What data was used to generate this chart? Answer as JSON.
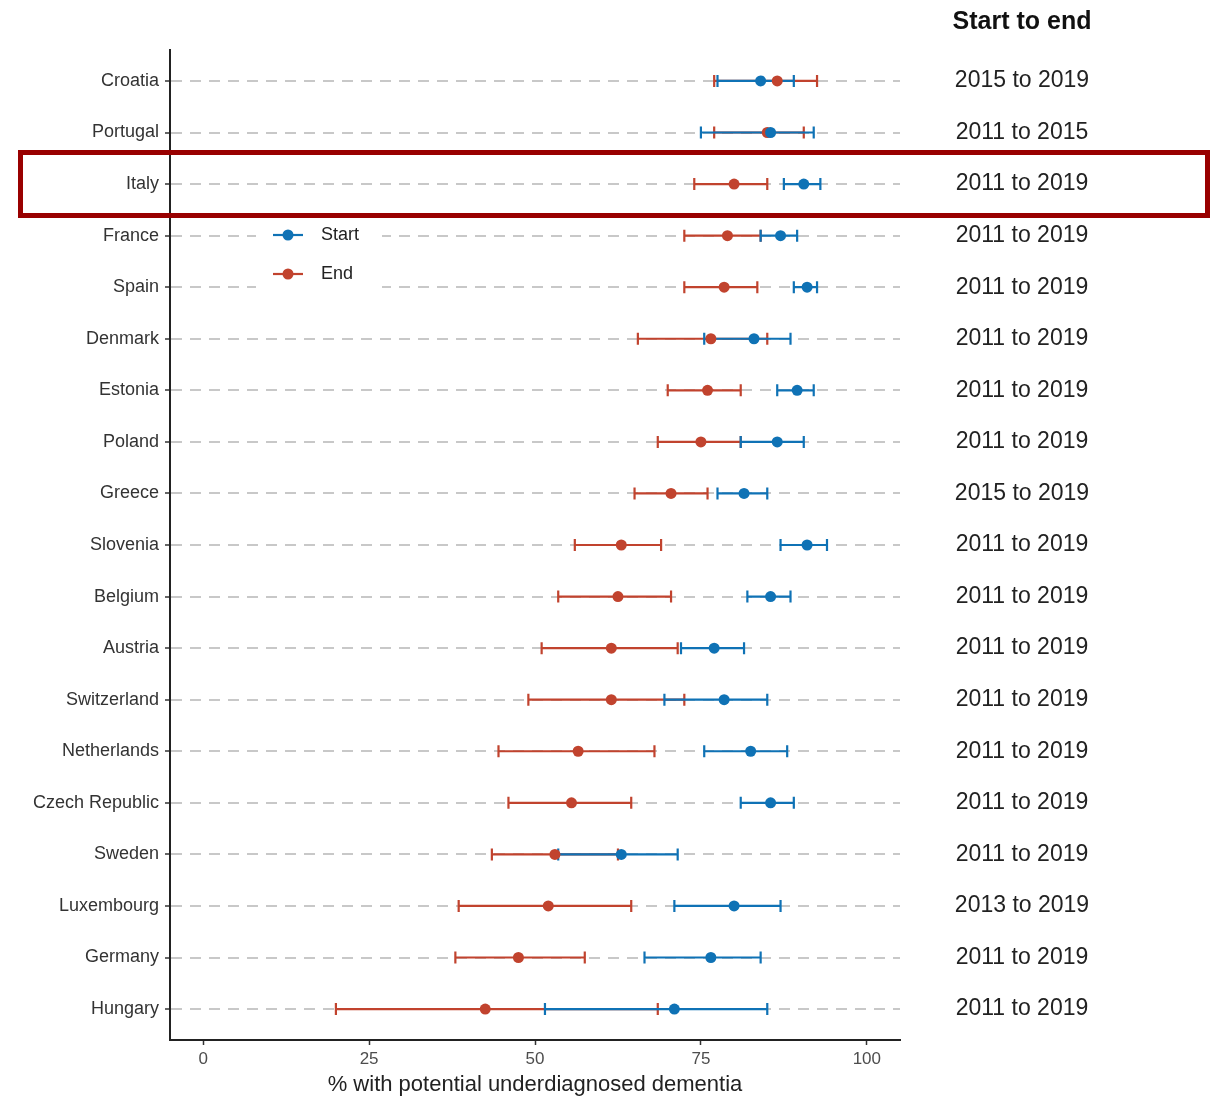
{
  "chart_data": {
    "type": "scatter",
    "orientation": "horizontal",
    "xlabel": "% with potential underdiagnosed dementia",
    "categories": [
      "Croatia",
      "Portugal",
      "Italy",
      "France",
      "Spain",
      "Denmark",
      "Estonia",
      "Poland",
      "Greece",
      "Slovenia",
      "Belgium",
      "Austria",
      "Switzerland",
      "Netherlands",
      "Czech Republic",
      "Sweden",
      "Luxembourg",
      "Germany",
      "Hungary"
    ],
    "series": [
      {
        "name": "Start",
        "color": "#0f72b5",
        "values": [
          84,
          85.5,
          90.5,
          87,
          91,
          83,
          89.5,
          86.5,
          81.5,
          91,
          85.5,
          77,
          78.5,
          82.5,
          85.5,
          63,
          80,
          76.5,
          71
        ],
        "errors": [
          [
            77.5,
            89
          ],
          [
            75,
            92
          ],
          [
            87.5,
            93
          ],
          [
            84,
            89.5
          ],
          [
            89,
            92.5
          ],
          [
            75.5,
            88.5
          ],
          [
            86.5,
            92
          ],
          [
            81,
            90.5
          ],
          [
            77.5,
            85
          ],
          [
            87,
            94
          ],
          [
            82,
            88.5
          ],
          [
            72,
            81.5
          ],
          [
            69.5,
            85
          ],
          [
            75.5,
            88
          ],
          [
            81,
            89
          ],
          [
            53.5,
            71.5
          ],
          [
            71,
            87
          ],
          [
            66.5,
            84
          ],
          [
            51.5,
            85
          ]
        ]
      },
      {
        "name": "End",
        "color": "#c1432e",
        "values": [
          86.5,
          85,
          80,
          79,
          78.5,
          76.5,
          76,
          75,
          70.5,
          63,
          62.5,
          61.5,
          61.5,
          56.5,
          55.5,
          53,
          52,
          47.5,
          42.5
        ],
        "errors": [
          [
            77,
            92.5
          ],
          [
            77,
            90.5
          ],
          [
            74,
            85
          ],
          [
            72.5,
            84
          ],
          [
            72.5,
            83.5
          ],
          [
            65.5,
            85
          ],
          [
            70,
            81
          ],
          [
            68.5,
            81
          ],
          [
            65,
            76
          ],
          [
            56,
            69
          ],
          [
            53.5,
            70.5
          ],
          [
            51,
            71.5
          ],
          [
            49,
            72.5
          ],
          [
            44.5,
            68
          ],
          [
            46,
            64.5
          ],
          [
            43.5,
            62.5
          ],
          [
            38.5,
            64.5
          ],
          [
            38,
            57.5
          ],
          [
            20,
            68.5
          ]
        ]
      }
    ],
    "xlim": [
      -5,
      105
    ],
    "xticks": [
      0,
      25,
      50,
      75,
      100
    ],
    "grid": "y",
    "legend": "top left",
    "marker": "circle",
    "annotations": [
      "Start to end",
      "2015 to 2019",
      "2011 to 2015",
      "2011 to 2019",
      "2011 to 2019",
      "2011 to 2019",
      "2011 to 2019",
      "2011 to 2019",
      "2011 to 2019",
      "2015 to 2019",
      "2011 to 2019",
      "2011 to 2019",
      "2011 to 2019",
      "2011 to 2019",
      "2011 to 2019",
      "2011 to 2019",
      "2011 to 2019",
      "2013 to 2019",
      "2011 to 2019",
      "2011 to 2019"
    ]
  }
}
